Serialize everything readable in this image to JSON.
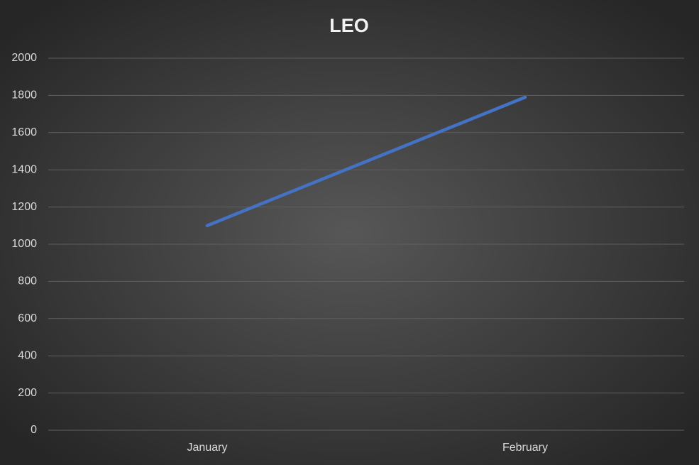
{
  "chart_data": {
    "type": "line",
    "title": "LEO",
    "categories": [
      "January",
      "February"
    ],
    "series": [
      {
        "name": "LEO",
        "color": "#4472c4",
        "values": [
          1100,
          1790
        ]
      }
    ],
    "ylim": [
      0,
      2000
    ],
    "yticks": [
      0,
      200,
      400,
      600,
      800,
      1000,
      1200,
      1400,
      1600,
      1800,
      2000
    ],
    "grid": true
  }
}
